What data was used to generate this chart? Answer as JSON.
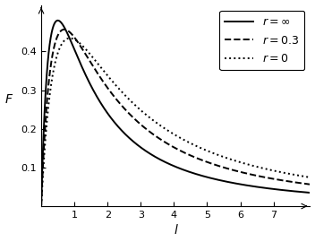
{
  "xlabel": "l",
  "ylabel": "F",
  "xlim": [
    0,
    8.1
  ],
  "ylim": [
    0,
    0.52
  ],
  "xticks": [
    1.0,
    2.0,
    3.0,
    4.0,
    5.0,
    6.0,
    7.0
  ],
  "yticks": [
    0.1,
    0.2,
    0.3,
    0.4
  ],
  "legend_labels": [
    "$r = \\infty$",
    "$r = 0.3$",
    "$r = 0$"
  ],
  "line_styles": [
    "-",
    "--",
    ":"
  ],
  "curves": [
    {
      "A": 3.24,
      "B": 1.0,
      "n": 3
    },
    {
      "A": 2.22,
      "B": 0.72,
      "n": 3
    },
    {
      "A": 1.7,
      "B": 0.58,
      "n": 3
    }
  ],
  "background_color": "#ffffff",
  "axis_color": "#000000",
  "tick_labelsize": 8,
  "label_fontsize": 10,
  "legend_fontsize": 9,
  "line_width": 1.4,
  "figsize": [
    3.52,
    2.7
  ],
  "dpi": 100
}
